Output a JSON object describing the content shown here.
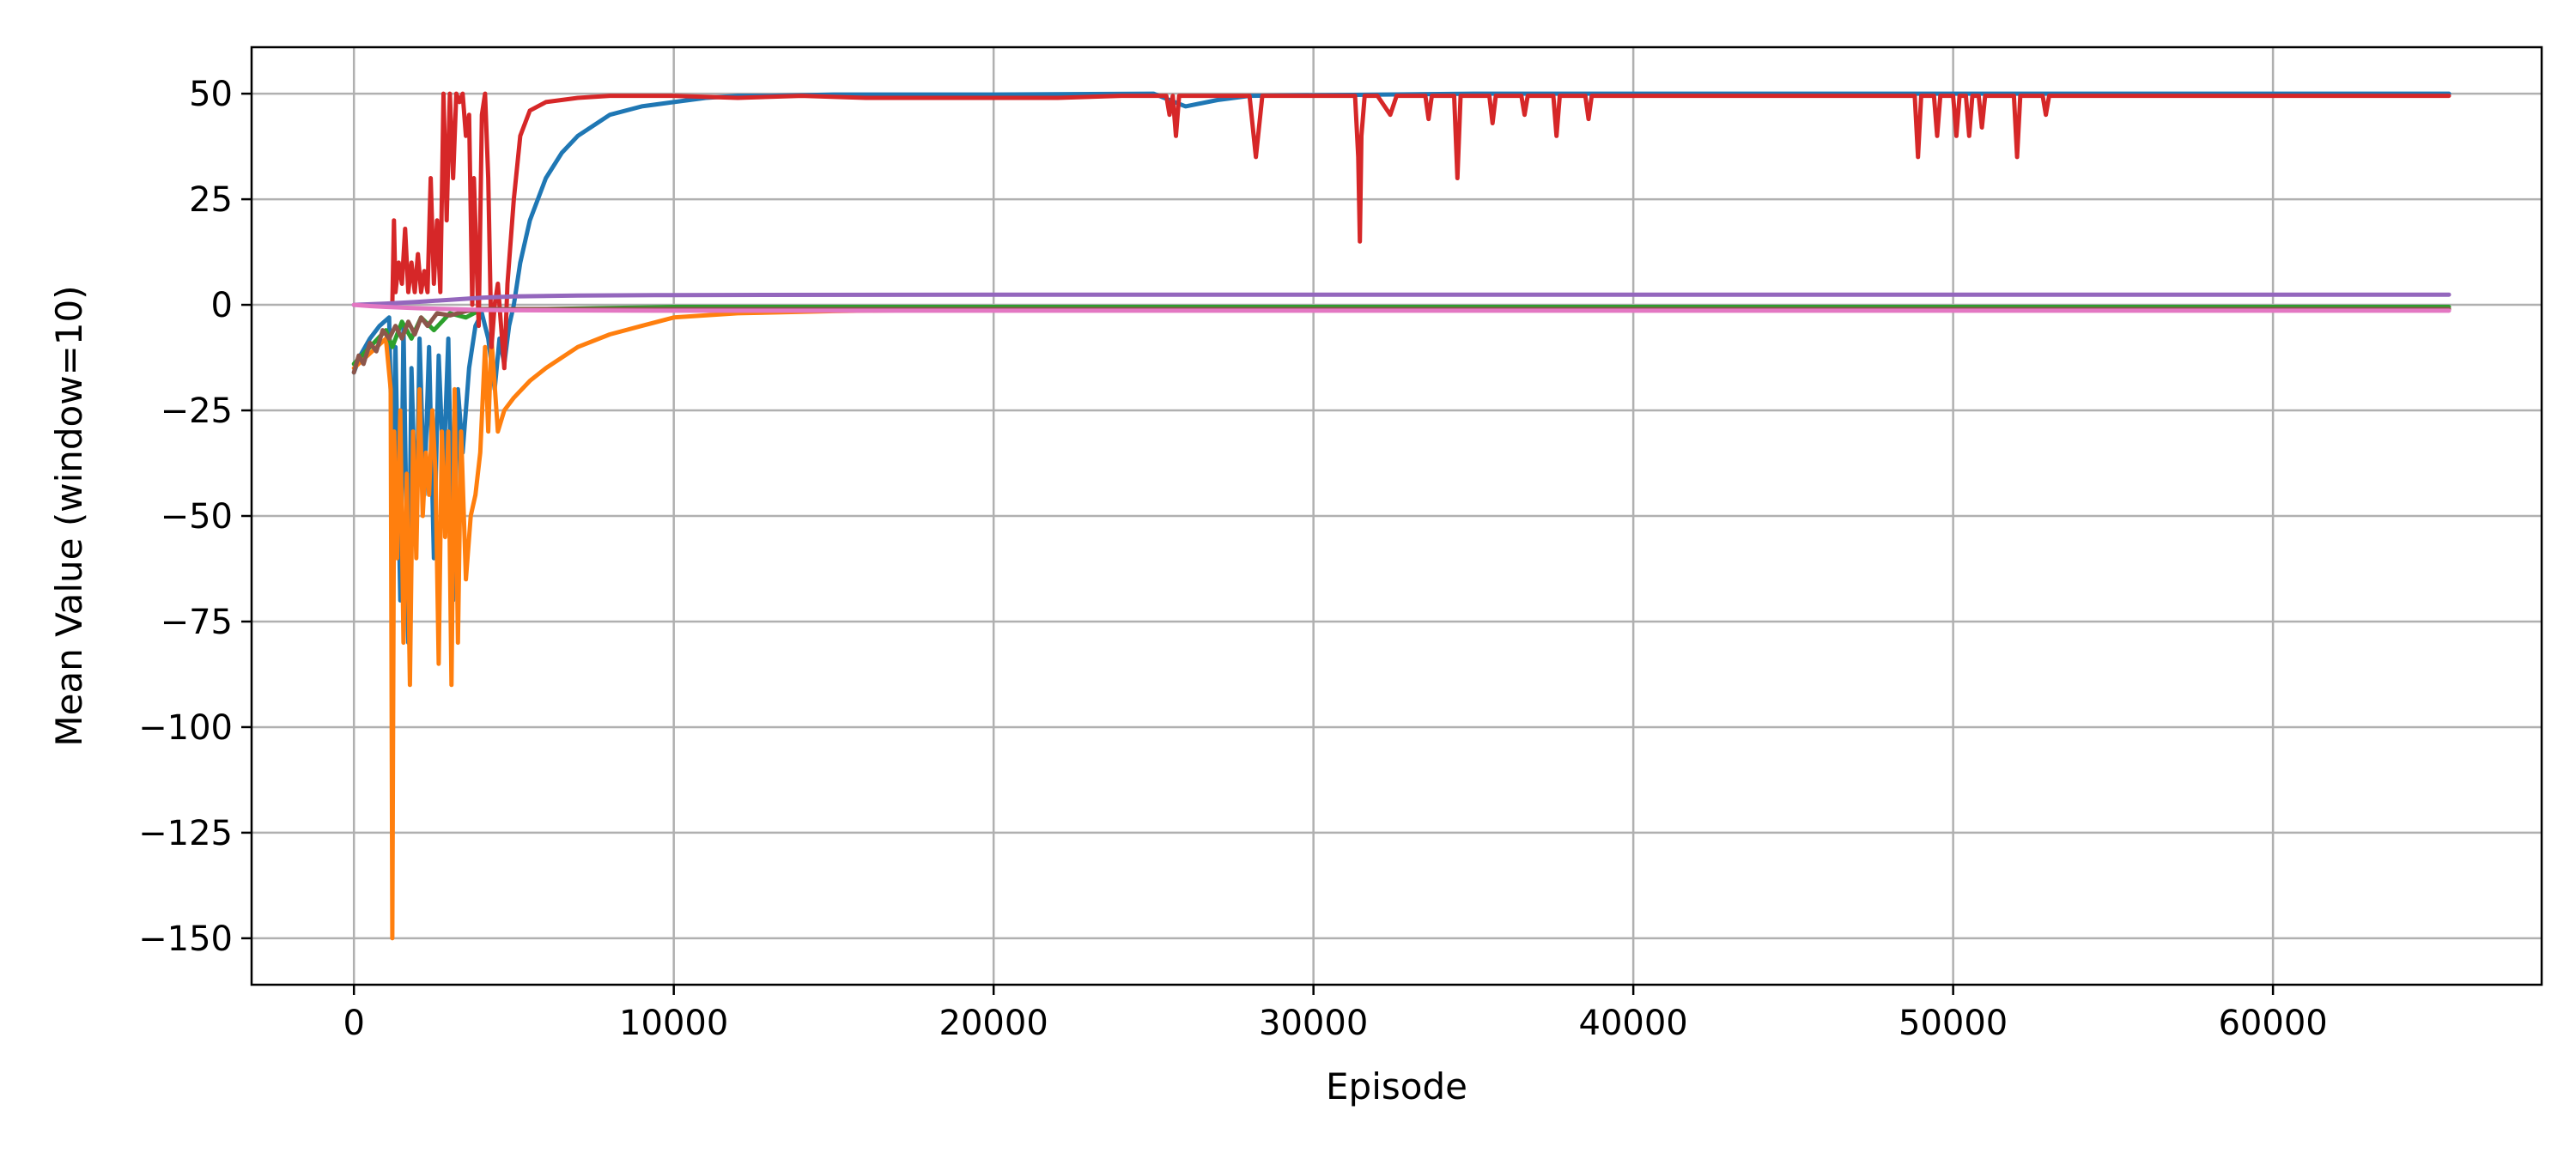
{
  "chart_data": {
    "type": "line",
    "title": "",
    "xlabel": "Episode",
    "ylabel": "Mean Value (window=10)",
    "xlim": [
      -3200,
      68400
    ],
    "ylim": [
      -161,
      61
    ],
    "x_ticks": [
      0,
      10000,
      20000,
      30000,
      40000,
      50000,
      60000
    ],
    "x_tick_labels": [
      "0",
      "10000",
      "20000",
      "30000",
      "40000",
      "50000",
      "60000"
    ],
    "y_ticks": [
      50,
      25,
      0,
      -25,
      -50,
      -75,
      -100,
      -125,
      -150
    ],
    "y_tick_labels": [
      "50",
      "25",
      "0",
      "−25",
      "−50",
      "−75",
      "−100",
      "−125",
      "−150"
    ],
    "grid": true,
    "legend": "none",
    "series": [
      {
        "color": "#1f77b4",
        "points": [
          [
            0,
            -16
          ],
          [
            200,
            -12
          ],
          [
            500,
            -8
          ],
          [
            800,
            -5
          ],
          [
            1100,
            -3
          ],
          [
            1200,
            -40
          ],
          [
            1300,
            -10
          ],
          [
            1450,
            -70
          ],
          [
            1550,
            -5
          ],
          [
            1700,
            -80
          ],
          [
            1800,
            -15
          ],
          [
            1950,
            -55
          ],
          [
            2050,
            -8
          ],
          [
            2200,
            -45
          ],
          [
            2350,
            -10
          ],
          [
            2500,
            -60
          ],
          [
            2650,
            -12
          ],
          [
            2800,
            -40
          ],
          [
            2950,
            -8
          ],
          [
            3100,
            -70
          ],
          [
            3250,
            -20
          ],
          [
            3400,
            -35
          ],
          [
            3600,
            -15
          ],
          [
            3800,
            -5
          ],
          [
            4000,
            -2
          ],
          [
            4200,
            -8
          ],
          [
            4400,
            -20
          ],
          [
            4550,
            -8
          ],
          [
            4700,
            -14
          ],
          [
            4850,
            -5
          ],
          [
            5000,
            0
          ],
          [
            5200,
            10
          ],
          [
            5500,
            20
          ],
          [
            6000,
            30
          ],
          [
            6500,
            36
          ],
          [
            7000,
            40
          ],
          [
            8000,
            45
          ],
          [
            9000,
            47
          ],
          [
            10000,
            48
          ],
          [
            11000,
            49
          ],
          [
            12000,
            49.5
          ],
          [
            13000,
            49.5
          ],
          [
            15000,
            49.8
          ],
          [
            20000,
            49.8
          ],
          [
            25000,
            50
          ],
          [
            26000,
            47
          ],
          [
            27000,
            48.5
          ],
          [
            28000,
            49.5
          ],
          [
            35000,
            50
          ],
          [
            40000,
            50
          ],
          [
            45000,
            50
          ],
          [
            50000,
            50
          ],
          [
            55000,
            50
          ],
          [
            60000,
            50
          ],
          [
            65500,
            50
          ]
        ]
      },
      {
        "color": "#ff7f0e",
        "points": [
          [
            0,
            -15
          ],
          [
            1000,
            -8
          ],
          [
            1150,
            -20
          ],
          [
            1200,
            -150
          ],
          [
            1260,
            -30
          ],
          [
            1350,
            -60
          ],
          [
            1450,
            -25
          ],
          [
            1550,
            -80
          ],
          [
            1650,
            -40
          ],
          [
            1750,
            -90
          ],
          [
            1850,
            -30
          ],
          [
            1950,
            -60
          ],
          [
            2050,
            -20
          ],
          [
            2150,
            -50
          ],
          [
            2250,
            -35
          ],
          [
            2350,
            -45
          ],
          [
            2450,
            -25
          ],
          [
            2550,
            -40
          ],
          [
            2650,
            -85
          ],
          [
            2750,
            -30
          ],
          [
            2850,
            -55
          ],
          [
            2950,
            -30
          ],
          [
            3050,
            -90
          ],
          [
            3150,
            -20
          ],
          [
            3250,
            -80
          ],
          [
            3350,
            -30
          ],
          [
            3500,
            -65
          ],
          [
            3650,
            -50
          ],
          [
            3800,
            -45
          ],
          [
            3950,
            -35
          ],
          [
            4100,
            -10
          ],
          [
            4200,
            -30
          ],
          [
            4300,
            -8
          ],
          [
            4500,
            -30
          ],
          [
            4700,
            -25
          ],
          [
            5000,
            -22
          ],
          [
            5500,
            -18
          ],
          [
            6000,
            -15
          ],
          [
            7000,
            -10
          ],
          [
            8000,
            -7
          ],
          [
            9000,
            -5
          ],
          [
            10000,
            -3
          ],
          [
            12000,
            -2
          ],
          [
            15000,
            -1.5
          ],
          [
            20000,
            -1
          ],
          [
            30000,
            -1
          ],
          [
            40000,
            -1
          ],
          [
            50000,
            -1
          ],
          [
            60000,
            -1
          ],
          [
            65500,
            -1
          ]
        ]
      },
      {
        "color": "#2ca02c",
        "points": [
          [
            0,
            -14
          ],
          [
            1000,
            -6
          ],
          [
            1200,
            -10
          ],
          [
            1500,
            -4
          ],
          [
            1800,
            -8
          ],
          [
            2100,
            -3
          ],
          [
            2500,
            -6
          ],
          [
            3000,
            -2
          ],
          [
            3500,
            -3
          ],
          [
            4000,
            -1
          ],
          [
            5000,
            -1
          ],
          [
            6000,
            -1
          ],
          [
            10000,
            -0.5
          ],
          [
            20000,
            -0.5
          ],
          [
            30000,
            -0.5
          ],
          [
            40000,
            -0.5
          ],
          [
            50000,
            -0.5
          ],
          [
            60000,
            -0.5
          ],
          [
            65500,
            -0.5
          ]
        ]
      },
      {
        "color": "#d62728",
        "points": [
          [
            1200,
            0
          ],
          [
            1250,
            20
          ],
          [
            1300,
            3
          ],
          [
            1400,
            10
          ],
          [
            1500,
            5
          ],
          [
            1600,
            18
          ],
          [
            1700,
            3
          ],
          [
            1800,
            10
          ],
          [
            1900,
            3
          ],
          [
            2000,
            12
          ],
          [
            2100,
            3
          ],
          [
            2200,
            8
          ],
          [
            2300,
            3
          ],
          [
            2400,
            30
          ],
          [
            2500,
            5
          ],
          [
            2600,
            20
          ],
          [
            2700,
            3
          ],
          [
            2800,
            50
          ],
          [
            2900,
            20
          ],
          [
            3000,
            50
          ],
          [
            3100,
            30
          ],
          [
            3200,
            50
          ],
          [
            3300,
            48
          ],
          [
            3400,
            50
          ],
          [
            3500,
            40
          ],
          [
            3600,
            45
          ],
          [
            3700,
            0
          ],
          [
            3750,
            30
          ],
          [
            3900,
            -5
          ],
          [
            4000,
            45
          ],
          [
            4100,
            50
          ],
          [
            4200,
            30
          ],
          [
            4300,
            -10
          ],
          [
            4400,
            0
          ],
          [
            4500,
            5
          ],
          [
            4700,
            -15
          ],
          [
            4800,
            5
          ],
          [
            5000,
            25
          ],
          [
            5200,
            40
          ],
          [
            5500,
            46
          ],
          [
            6000,
            48
          ],
          [
            7000,
            49
          ],
          [
            8000,
            49.5
          ],
          [
            10000,
            49.5
          ],
          [
            12000,
            49
          ],
          [
            14000,
            49.5
          ],
          [
            16000,
            49
          ],
          [
            18000,
            49
          ],
          [
            20000,
            49
          ],
          [
            22000,
            49
          ],
          [
            24000,
            49.5
          ],
          [
            25400,
            49.5
          ],
          [
            25500,
            45
          ],
          [
            25600,
            49.5
          ],
          [
            25700,
            40
          ],
          [
            25800,
            49.5
          ],
          [
            28000,
            49.5
          ],
          [
            28200,
            35
          ],
          [
            28400,
            49.5
          ],
          [
            31300,
            49.5
          ],
          [
            31400,
            35
          ],
          [
            31450,
            15
          ],
          [
            31500,
            40
          ],
          [
            31600,
            49.5
          ],
          [
            32000,
            49.5
          ],
          [
            32400,
            45
          ],
          [
            32600,
            49.5
          ],
          [
            33500,
            49.5
          ],
          [
            33600,
            44
          ],
          [
            33700,
            49.5
          ],
          [
            34400,
            49.5
          ],
          [
            34500,
            30
          ],
          [
            34600,
            49.5
          ],
          [
            35500,
            49.5
          ],
          [
            35600,
            43
          ],
          [
            35700,
            49.5
          ],
          [
            36500,
            49.5
          ],
          [
            36600,
            45
          ],
          [
            36700,
            49.5
          ],
          [
            37500,
            49.5
          ],
          [
            37600,
            40
          ],
          [
            37700,
            49.5
          ],
          [
            38500,
            49.5
          ],
          [
            38600,
            44
          ],
          [
            38700,
            49.5
          ],
          [
            48800,
            49.5
          ],
          [
            48900,
            35
          ],
          [
            49000,
            49.5
          ],
          [
            49400,
            49.5
          ],
          [
            49500,
            40
          ],
          [
            49600,
            49.5
          ],
          [
            50000,
            49.5
          ],
          [
            50100,
            40
          ],
          [
            50200,
            49.5
          ],
          [
            50400,
            49.5
          ],
          [
            50500,
            40
          ],
          [
            50600,
            49.5
          ],
          [
            50800,
            49.5
          ],
          [
            50900,
            42
          ],
          [
            51000,
            49.5
          ],
          [
            51900,
            49.5
          ],
          [
            52000,
            35
          ],
          [
            52100,
            49.5
          ],
          [
            52800,
            49.5
          ],
          [
            52900,
            45
          ],
          [
            53000,
            49.5
          ],
          [
            55000,
            49.5
          ],
          [
            60000,
            49.5
          ],
          [
            65500,
            49.5
          ]
        ]
      },
      {
        "color": "#9467bd",
        "points": [
          [
            0,
            0
          ],
          [
            1000,
            0.3
          ],
          [
            2000,
            0.7
          ],
          [
            3000,
            1.2
          ],
          [
            4000,
            1.7
          ],
          [
            5000,
            2
          ],
          [
            7000,
            2.2
          ],
          [
            10000,
            2.3
          ],
          [
            20000,
            2.4
          ],
          [
            30000,
            2.4
          ],
          [
            40000,
            2.4
          ],
          [
            50000,
            2.4
          ],
          [
            60000,
            2.4
          ],
          [
            65500,
            2.4
          ]
        ]
      },
      {
        "color": "#8c564b",
        "points": [
          [
            0,
            -16
          ],
          [
            150,
            -12
          ],
          [
            300,
            -14
          ],
          [
            500,
            -9
          ],
          [
            700,
            -11
          ],
          [
            900,
            -6
          ],
          [
            1100,
            -8
          ],
          [
            1300,
            -5
          ],
          [
            1500,
            -8
          ],
          [
            1700,
            -4
          ],
          [
            1900,
            -7
          ],
          [
            2100,
            -3
          ],
          [
            2300,
            -5
          ],
          [
            2600,
            -2
          ],
          [
            3000,
            -2.5
          ],
          [
            3500,
            -1.5
          ],
          [
            4000,
            -1
          ],
          [
            5000,
            -1
          ],
          [
            10000,
            -1
          ],
          [
            20000,
            -1
          ],
          [
            30000,
            -1
          ],
          [
            40000,
            -1
          ],
          [
            50000,
            -1
          ],
          [
            60000,
            -1
          ],
          [
            65500,
            -1
          ]
        ]
      },
      {
        "color": "#e377c2",
        "points": [
          [
            0,
            0
          ],
          [
            500,
            -0.3
          ],
          [
            1000,
            -0.5
          ],
          [
            2000,
            -0.8
          ],
          [
            3000,
            -1
          ],
          [
            4000,
            -1.2
          ],
          [
            5000,
            -1.3
          ],
          [
            10000,
            -1.4
          ],
          [
            20000,
            -1.4
          ],
          [
            30000,
            -1.4
          ],
          [
            40000,
            -1.4
          ],
          [
            50000,
            -1.4
          ],
          [
            60000,
            -1.4
          ],
          [
            65500,
            -1.4
          ]
        ]
      }
    ]
  }
}
